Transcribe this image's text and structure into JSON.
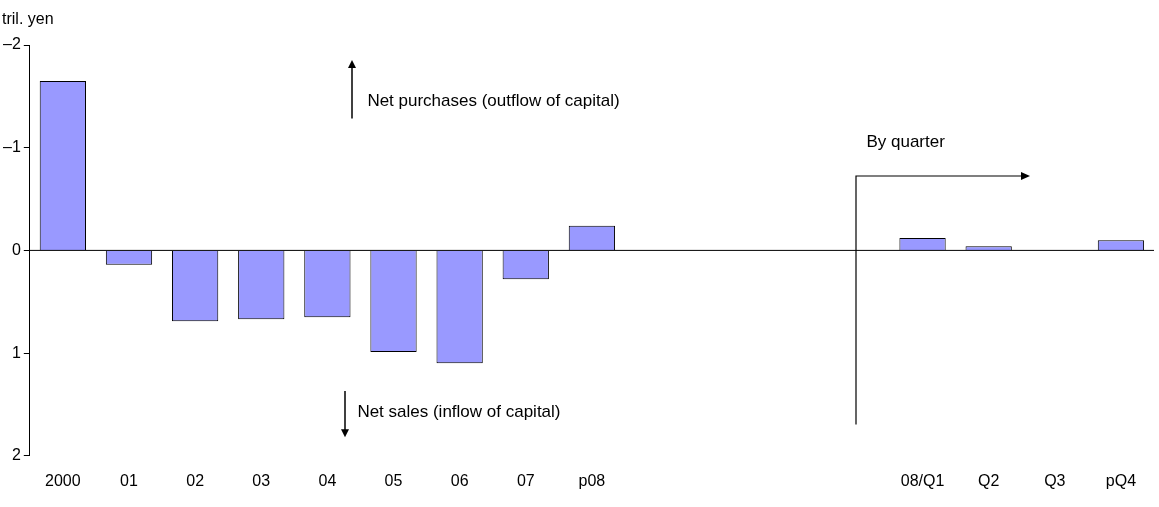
{
  "chart_data": {
    "type": "bar",
    "ylabel": "tril. yen",
    "categories": [
      "2000",
      "01",
      "02",
      "03",
      "04",
      "05",
      "06",
      "07",
      "p08",
      null,
      null,
      null,
      null,
      "08/Q1",
      "Q2",
      "Q3",
      "pQ4"
    ],
    "values": [
      -1.65,
      0.14,
      0.69,
      0.67,
      0.65,
      0.99,
      1.1,
      0.28,
      -0.24,
      null,
      null,
      null,
      null,
      -0.12,
      -0.04,
      0,
      -0.1
    ],
    "color": "#9999ff",
    "ylim": [
      2,
      -2
    ],
    "yticks": [
      {
        "value": -2,
        "label": "–2"
      },
      {
        "value": -1,
        "label": "–1"
      },
      0,
      1,
      2
    ],
    "ref_lines": [
      {
        "axis": "y",
        "value": 0
      }
    ],
    "annotations": [
      "Net purchases (outflow of capital)",
      "Net sales (inflow of capital)",
      "By quarter"
    ],
    "grid": false,
    "legend": false
  }
}
